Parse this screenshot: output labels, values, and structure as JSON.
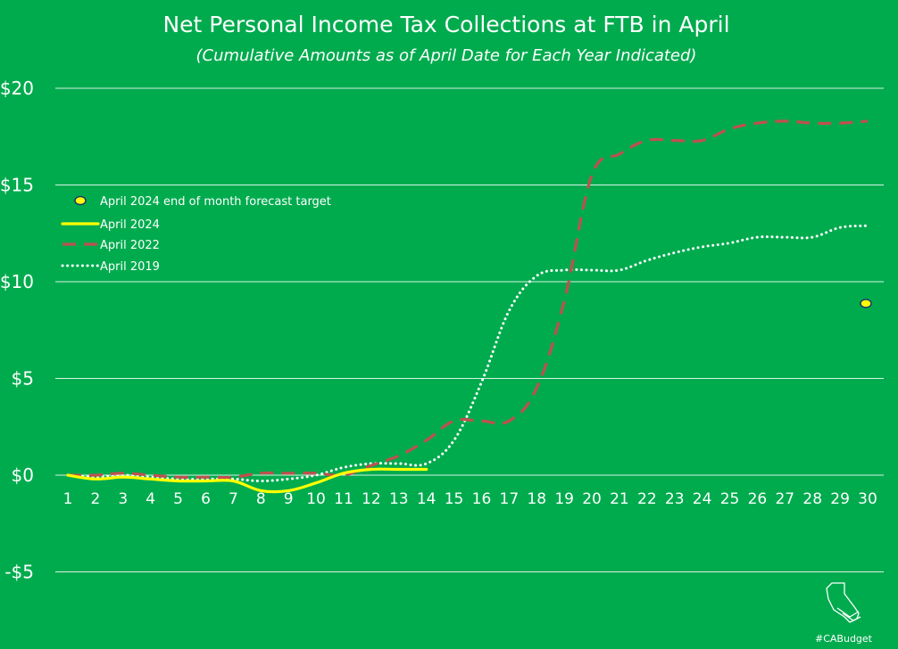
{
  "chart_data": {
    "type": "line",
    "title": "Net Personal Income Tax Collections at FTB in April",
    "subtitle": "(Cumulative Amounts as of April Date for Each Year Indicated)",
    "xlabel": "",
    "ylabel": "",
    "x": [
      1,
      2,
      3,
      4,
      5,
      6,
      7,
      8,
      9,
      10,
      11,
      12,
      13,
      14,
      15,
      16,
      17,
      18,
      19,
      20,
      21,
      22,
      23,
      24,
      25,
      26,
      27,
      28,
      29,
      30
    ],
    "ylim": [
      -7.5,
      20
    ],
    "y_ticks": [
      20,
      15,
      10,
      5,
      0,
      -5
    ],
    "y_tick_labels": [
      "$20",
      "$15",
      "$10",
      "$5",
      "$0",
      "-$5"
    ],
    "grid": true,
    "legend_position": "left",
    "series": [
      {
        "name": "April 2024",
        "style": "solid",
        "color": "#ffff00",
        "x": [
          1,
          2,
          3,
          4,
          5,
          6,
          7,
          8,
          9,
          10,
          11,
          12,
          13,
          14
        ],
        "values": [
          0,
          -0.2,
          -0.1,
          -0.2,
          -0.3,
          -0.3,
          -0.3,
          -0.8,
          -0.8,
          -0.4,
          0.1,
          0.3,
          0.3,
          0.3
        ]
      },
      {
        "name": "April 2022",
        "style": "dashed",
        "color": "#c0504d",
        "x": [
          1,
          2,
          3,
          4,
          5,
          6,
          7,
          8,
          9,
          10,
          11,
          12,
          13,
          14,
          15,
          16,
          17,
          18,
          19,
          20,
          21,
          22,
          23,
          24,
          25,
          26,
          27,
          28,
          29,
          30
        ],
        "values": [
          0,
          0,
          0.1,
          0,
          -0.1,
          -0.1,
          -0.1,
          0.1,
          0.1,
          0.1,
          0,
          0.5,
          1.0,
          1.8,
          2.8,
          2.8,
          2.8,
          4.5,
          9.0,
          15.5,
          16.6,
          17.3,
          17.3,
          17.3,
          17.9,
          18.2,
          18.3,
          18.2,
          18.2,
          18.3
        ]
      },
      {
        "name": "April 2019",
        "style": "dotted",
        "color": "#ffffff",
        "x": [
          1,
          2,
          3,
          4,
          5,
          6,
          7,
          8,
          9,
          10,
          11,
          12,
          13,
          14,
          15,
          16,
          17,
          18,
          19,
          20,
          21,
          22,
          23,
          24,
          25,
          26,
          27,
          28,
          29,
          30
        ],
        "values": [
          0,
          -0.1,
          0,
          -0.1,
          -0.2,
          -0.2,
          -0.2,
          -0.3,
          -0.2,
          0,
          0.4,
          0.6,
          0.6,
          0.6,
          1.8,
          4.8,
          8.5,
          10.3,
          10.6,
          10.6,
          10.6,
          11.1,
          11.5,
          11.8,
          12.0,
          12.3,
          12.3,
          12.3,
          12.8,
          12.9
        ]
      }
    ],
    "forecast_marker": {
      "name": "April 2024 end of month forecast target",
      "x": 30,
      "value": 8.9,
      "fill": "#ffff00",
      "stroke": "#1f3864"
    },
    "legend": [
      {
        "label": "April 2024 end of month forecast target",
        "kind": "marker"
      },
      {
        "label": "April 2024",
        "kind": "line",
        "series": 0
      },
      {
        "label": "April 2022",
        "kind": "line",
        "series": 1
      },
      {
        "label": "April 2019",
        "kind": "line",
        "series": 2
      }
    ]
  },
  "branding": {
    "hashtag": "#CABudget",
    "logo_icon": "california-state-icon"
  },
  "colors": {
    "background": "#00ab4e",
    "gridline": "#ffffff",
    "text": "#ffffff"
  }
}
